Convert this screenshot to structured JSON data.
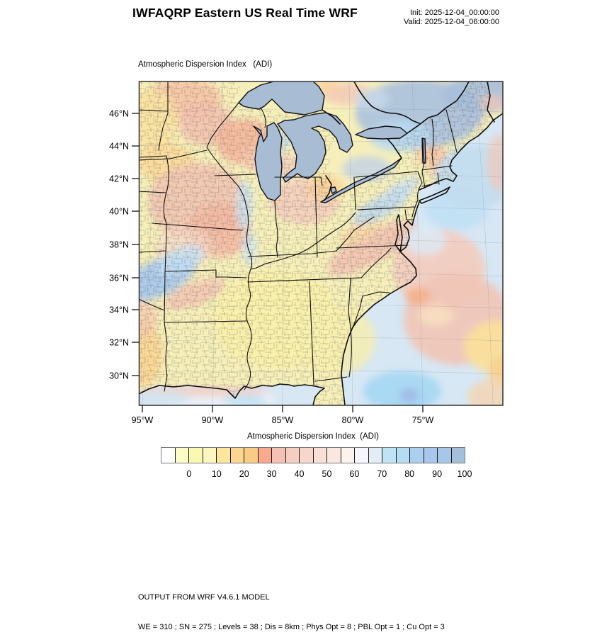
{
  "header": {
    "title": "IWFAQRP Eastern US Real Time WRF",
    "init_label": "Init: 2025-12-04_00:00:00",
    "valid_label": "Valid: 2025-12-04_06:00:00"
  },
  "map": {
    "subtitle": "Atmospheric Dispersion Index   (ADI)",
    "lat_ticks": [
      "46°N",
      "44°N",
      "42°N",
      "40°N",
      "38°N",
      "36°N",
      "34°N",
      "32°N",
      "30°N"
    ],
    "lon_ticks": [
      "95°W",
      "90°W",
      "85°W",
      "80°W",
      "75°W"
    ],
    "lake_color": "#a8bcd4",
    "land_base_color": "#f6efba",
    "ocean_base_color": "#d7e7f4"
  },
  "colorbar": {
    "title": "Atmospheric Dispersion Index  (ADI)",
    "tick_labels": [
      "0",
      "10",
      "20",
      "30",
      "40",
      "50",
      "60",
      "70",
      "80",
      "90",
      "100"
    ],
    "cell_colors": [
      "#ffffff",
      "#fdfcc8",
      "#fbf9b1",
      "#fcf6c0",
      "#fce69e",
      "#fbd691",
      "#f8cc85",
      "#faa98d",
      "#f3c2b4",
      "#f5cdc1",
      "#f7d7cc",
      "#f9e0d7",
      "#fae8e0",
      "#fdf3ee",
      "#f5f7fc",
      "#e2edf8",
      "#bfe3f5",
      "#b4dcf3",
      "#abcfef",
      "#a9c6ed",
      "#a7c6e8",
      "#a3bfda"
    ]
  },
  "chart_data": {
    "type": "heatmap",
    "title": "Atmospheric Dispersion Index   (ADI)",
    "colorbar_title": "Atmospheric Dispersion Index  (ADI)",
    "colorbar_ticks": [
      0,
      10,
      20,
      30,
      40,
      50,
      60,
      70,
      80,
      90,
      100
    ],
    "colorbar_units_per_cell": 5,
    "x_axis_ticks": [
      "95°W",
      "90°W",
      "85°W",
      "80°W",
      "75°W"
    ],
    "y_axis_ticks": [
      "46°N",
      "44°N",
      "42°N",
      "40°N",
      "38°N",
      "36°N",
      "34°N",
      "32°N",
      "30°N"
    ],
    "region": "Eastern US",
    "notes": "Filled ADI field over Lambert-style map; low ADI (yellow/orange/pink) over most land, higher ADI (blue) over Quebec/Ontario, Ozarks band, Appalachian sliver and offshore patches"
  },
  "footer": {
    "line1": "OUTPUT FROM WRF V4.6.1 MODEL",
    "line2": "WE = 310 ; SN = 275 ; Levels = 38 ; Dis = 8km ; Phys Opt = 8 ; PBL Opt = 1 ; Cu Opt = 3"
  }
}
